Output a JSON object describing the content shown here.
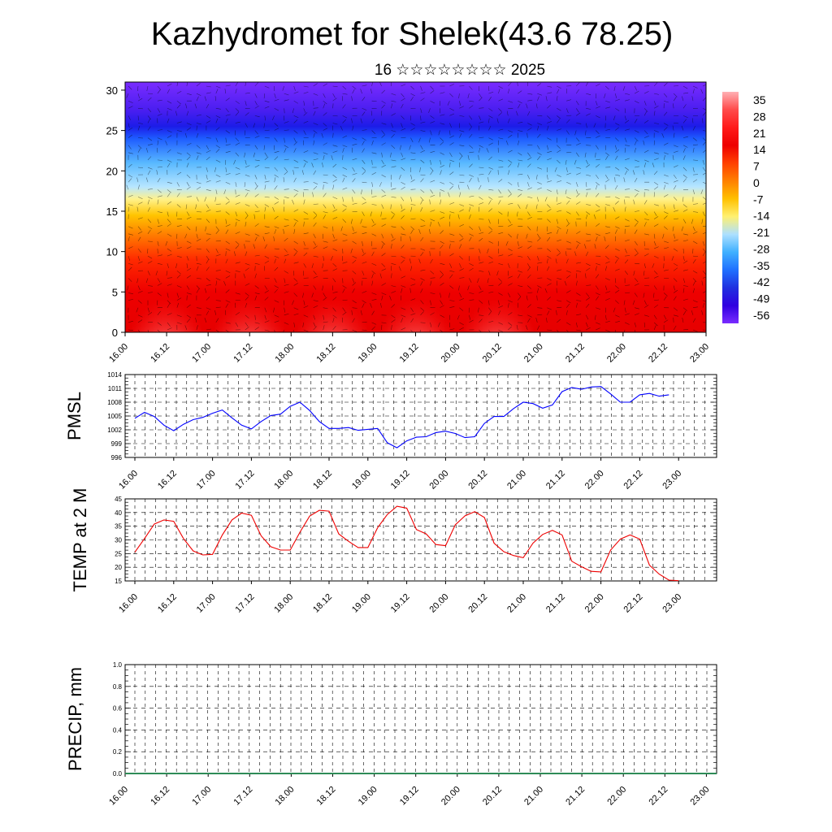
{
  "title": "Kazhydromet for Shelek(43.6 78.25)",
  "subtitle": "16 ☆☆☆☆☆☆☆☆ 2025",
  "time_labels": [
    "16.00",
    "16.12",
    "17.00",
    "17.12",
    "18.00",
    "18.12",
    "19.00",
    "19.12",
    "20.00",
    "20.12",
    "21.00",
    "21.12",
    "22.00",
    "22.12",
    "23.00"
  ],
  "chart_data": [
    {
      "type": "heatmap",
      "name": "cross-section",
      "y_ticks": [
        0,
        5,
        10,
        15,
        20,
        25,
        30
      ],
      "ylim": [
        0,
        31
      ],
      "colorbar": {
        "labels": [
          "35",
          "28",
          "21",
          "14",
          "7",
          "0",
          "-7",
          "-14",
          "-21",
          "-28",
          "-35",
          "-42",
          "-49",
          "-56"
        ],
        "colors": [
          "#ffb0b4",
          "#ff4b4b",
          "#ff1a1a",
          "#ee0000",
          "#ff4000",
          "#ff8000",
          "#ffc000",
          "#fff070",
          "#aee0ff",
          "#40b0ff",
          "#2070ff",
          "#2030e0",
          "#3000e0",
          "#7a2cff"
        ]
      },
      "levels": [
        {
          "y": 0,
          "color": "#e60000"
        },
        {
          "y": 5,
          "color": "#ee0000"
        },
        {
          "y": 9,
          "color": "#ff2a00"
        },
        {
          "y": 12,
          "color": "#ff7a00"
        },
        {
          "y": 14.5,
          "color": "#ffc400"
        },
        {
          "y": 16.5,
          "color": "#fff28c"
        },
        {
          "y": 18,
          "color": "#b8e6ff"
        },
        {
          "y": 21,
          "color": "#58b8ff"
        },
        {
          "y": 24,
          "color": "#1e5cff"
        },
        {
          "y": 25.5,
          "color": "#1c1ce8"
        },
        {
          "y": 27.5,
          "color": "#4a1ef0"
        },
        {
          "y": 31,
          "color": "#7a2cff"
        }
      ],
      "warm_domes_x": [
        0.5,
        1.5,
        2.5,
        3.5,
        4.5
      ]
    },
    {
      "type": "line",
      "ylabel": "PMSL",
      "color": "#0000ff",
      "y_ticks": [
        996,
        999,
        1002,
        1005,
        1008,
        1011,
        1014
      ],
      "ylim": [
        996,
        1014
      ],
      "x_step_hours": 3,
      "values": [
        1004.5,
        1005.8,
        1004.9,
        1003.0,
        1001.8,
        1003.2,
        1004.2,
        1004.7,
        1005.6,
        1006.3,
        1004.6,
        1003.0,
        1002.2,
        1003.8,
        1005.1,
        1005.4,
        1007.1,
        1008.0,
        1006.2,
        1003.8,
        1002.3,
        1002.3,
        1002.5,
        1001.9,
        1002.1,
        1002.3,
        999.2,
        998.1,
        999.6,
        1000.4,
        1000.5,
        1001.4,
        1001.7,
        1001.2,
        1000.3,
        1000.5,
        1003.4,
        1004.9,
        1004.9,
        1006.6,
        1008.0,
        1007.7,
        1006.7,
        1007.4,
        1010.3,
        1011.2,
        1010.8,
        1011.3,
        1011.4,
        1009.8,
        1008.0,
        1008.0,
        1009.6,
        1009.9,
        1009.3,
        1009.6
      ]
    },
    {
      "type": "line",
      "ylabel": "TEMP at 2 M",
      "color": "#ee0000",
      "y_ticks": [
        15,
        20,
        25,
        30,
        35,
        40,
        45
      ],
      "ylim": [
        15,
        45
      ],
      "x_step_hours": 3,
      "values": [
        25.5,
        30.5,
        35.8,
        37.3,
        36.8,
        30.5,
        26.0,
        24.5,
        24.7,
        31.8,
        37.3,
        39.8,
        39.0,
        31.5,
        27.5,
        26.3,
        26.3,
        32.8,
        38.7,
        40.8,
        40.5,
        32.2,
        29.5,
        27.2,
        27.2,
        34.5,
        39.3,
        42.3,
        41.6,
        33.8,
        32.2,
        28.3,
        27.9,
        35.5,
        38.8,
        40.3,
        38.2,
        28.8,
        25.7,
        24.3,
        23.5,
        28.8,
        32.0,
        33.5,
        31.8,
        22.2,
        20.2,
        18.5,
        18.3,
        26.3,
        30.3,
        31.8,
        30.3,
        20.8,
        17.5,
        15.3,
        15.1
      ]
    },
    {
      "type": "line",
      "ylabel": "PRECIP, mm",
      "color": "#2e8b57",
      "y_ticks": [
        "0.0",
        "0.2",
        "0.4",
        "0.6",
        "0.8",
        "1.0"
      ],
      "ylim": [
        0,
        1
      ],
      "values": []
    }
  ]
}
